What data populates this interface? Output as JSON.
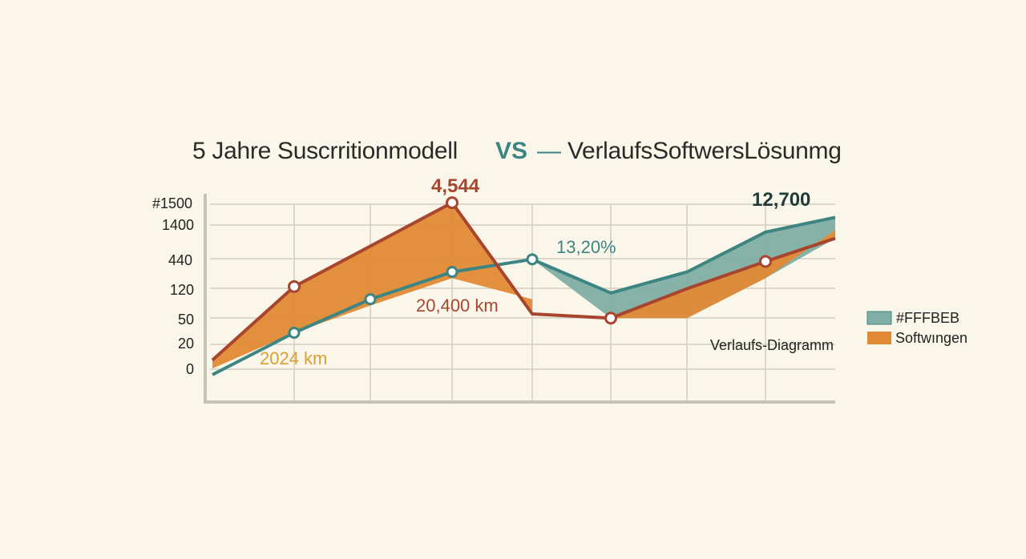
{
  "title": {
    "left": "5 Jahre Suscrritionmodell",
    "vs": "VS",
    "dash": "—",
    "right": "VerlaufsSoftwersLösunmg"
  },
  "colors": {
    "background": "#FBF6EA",
    "teal": "#3D8582",
    "teal_fill": "#7FAEA4",
    "orange": "#E08A35",
    "red": "#A8452F",
    "gold": "#D9A033",
    "grid": "#CFCAC0"
  },
  "chart_data": {
    "type": "area",
    "y_ticks": [
      "#1500",
      "1400",
      "440",
      "120",
      "50",
      "20",
      "0"
    ],
    "grid": true,
    "legend_position": "right",
    "series": [
      {
        "name": "#FFFBEB",
        "color": "#3D8582",
        "fill": "#7FAEA4",
        "values": [
          0.13,
          0.33,
          0.49,
          0.62,
          0.68,
          0.52,
          0.62,
          0.81,
          0.88
        ],
        "marker_indices": [
          1,
          2,
          3,
          4
        ]
      },
      {
        "name": "Softwıngen",
        "color": "#A8452F",
        "fill": "#E08A35",
        "values": [
          0.2,
          0.55,
          0.95,
          0.42,
          0.4,
          0.54,
          0.67,
          0.78
        ],
        "marker_indices": [
          1,
          2,
          4,
          6
        ]
      }
    ],
    "annotations": [
      {
        "text": "4,544",
        "color": "#A8452F",
        "bold": true
      },
      {
        "text": "12,700",
        "color": "#1F3B38",
        "bold": true
      },
      {
        "text": "13,20%",
        "color": "#3D8582",
        "bold": false
      },
      {
        "text": "20,400 km",
        "color": "#A8452F",
        "bold": false
      },
      {
        "text": "2024 km",
        "color": "#D9A033",
        "bold": false
      },
      {
        "text": "Verlaufs-Diagramm",
        "color": "#222222",
        "bold": false
      }
    ]
  }
}
